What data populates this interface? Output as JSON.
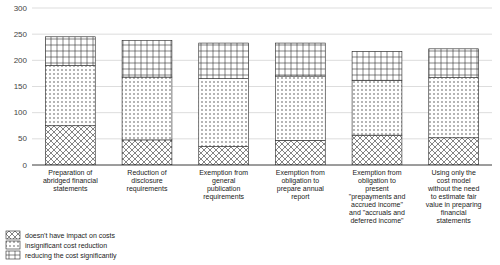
{
  "chart_data": {
    "type": "bar",
    "stacked": true,
    "categories": [
      "Preparation of\nabridged financial\nstatements",
      "Reduction of\ndisclosure\nrequirements",
      "Exemption from\ngeneral\npublication\nrequirements",
      "Exemption from\nobligation to\nprepare annual\nreport",
      "Exemption from\nobligation to\npresent\n\"prepayments and\naccrued income\"\nand \"accruals and\ndeferred income\"",
      "Using only the\ncost model\nwithout the need\nto estimate fair\nvalue in preparing\nfinancial\nstatements"
    ],
    "series": [
      {
        "name": "doesn't have impact on costs",
        "color": "#ffffff",
        "values": [
          75,
          48,
          35,
          47,
          57,
          52
        ]
      },
      {
        "name": "insignificant cost reduction",
        "color": "#ffffff",
        "values": [
          115,
          120,
          130,
          123,
          105,
          115
        ]
      },
      {
        "name": "reducing the cost significantly",
        "color": "#ffffff",
        "values": [
          55,
          70,
          68,
          63,
          55,
          55
        ]
      }
    ],
    "ylim": [
      0,
      300
    ],
    "yticks": [
      0,
      50,
      100,
      150,
      200,
      250,
      300
    ],
    "grid": true,
    "legend": "bottom"
  }
}
